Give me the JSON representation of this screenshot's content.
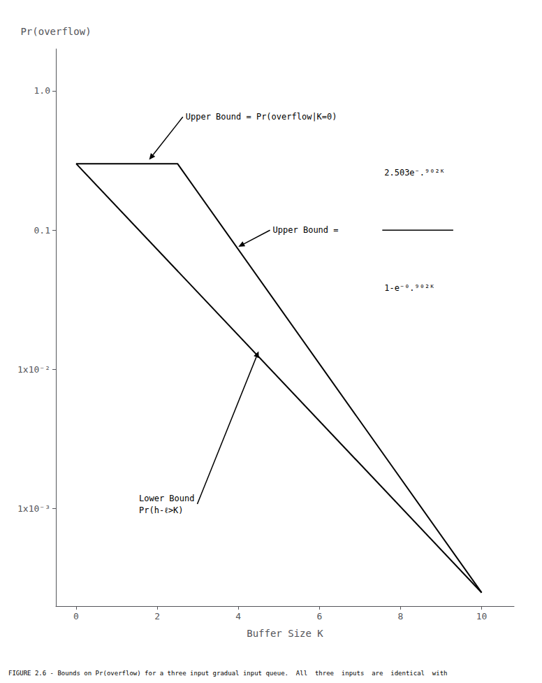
{
  "chart_data": {
    "type": "line",
    "xlabel": "Buffer Size K",
    "ylabel": "Pr(overflow)",
    "caption": "FIGURE 2.6 - Bounds on Pr(overflow) for a three input gradual input queue.  All  three  inputs  are  identical  with",
    "series": [
      {
        "x": [
          0,
          2.5,
          10.0
        ],
        "values": [
          0.3,
          0.3,
          0.00025
        ],
        "color": "#000000"
      },
      {
        "x": [
          0.0,
          10.0
        ],
        "values": [
          0.3,
          0.00025
        ],
        "color": "#000000"
      }
    ],
    "xlim": [
      -0.5,
      10.8
    ],
    "xticks": [
      0,
      2,
      4,
      6,
      8,
      10
    ],
    "ylim": [
      0.0002,
      2.0
    ],
    "yticks": [
      {
        "value": 1.0,
        "label": "1.0"
      },
      0.1,
      {
        "value": 0.01,
        "label": "1x10⁻²"
      },
      {
        "value": 0.001,
        "label": "1x10⁻³"
      }
    ],
    "log": "y",
    "grid": false,
    "annotations": [
      "Upper Bound = Pr(overflow|K=0)",
      "Upper Bound = ",
      "2.503e⁻.⁹⁰²ᴷ",
      "1-e⁻⁰.⁹⁰²ᴷ",
      "Lower Bound\nPr(h-ℓ>K)"
    ]
  }
}
